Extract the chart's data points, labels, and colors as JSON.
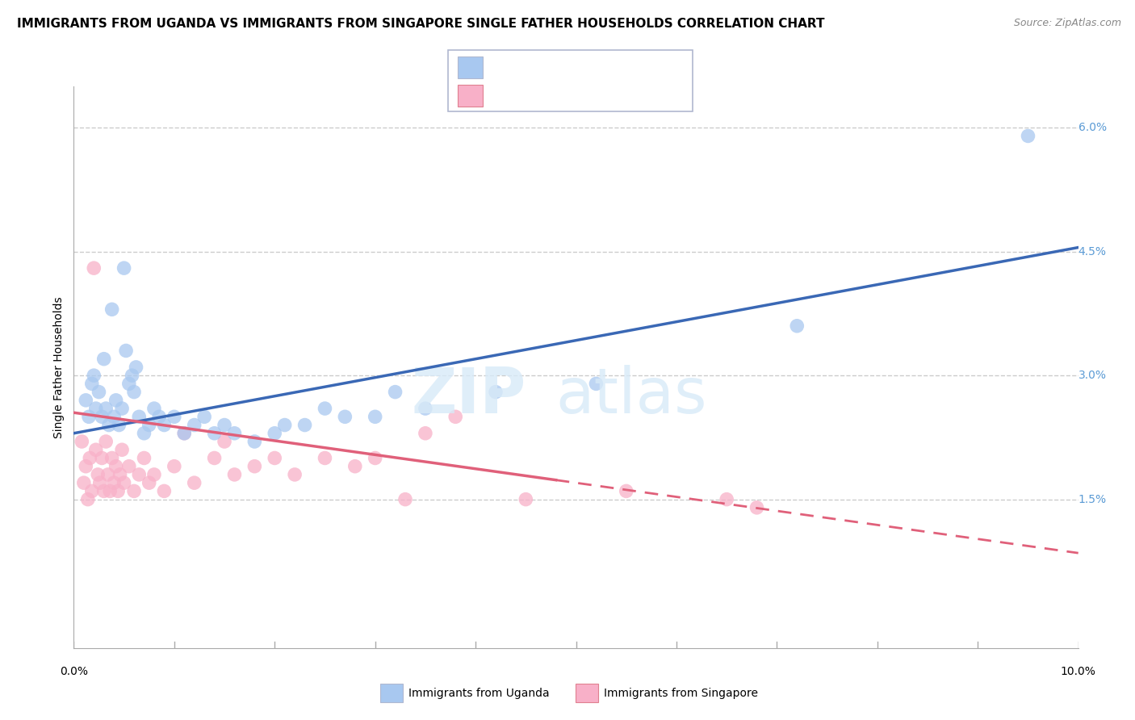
{
  "title": "IMMIGRANTS FROM UGANDA VS IMMIGRANTS FROM SINGAPORE SINGLE FATHER HOUSEHOLDS CORRELATION CHART",
  "source": "Source: ZipAtlas.com",
  "ylabel": "Single Father Households",
  "xlim": [
    0.0,
    10.0
  ],
  "ylim": [
    -0.3,
    6.5
  ],
  "ytick_vals": [
    1.5,
    3.0,
    4.5,
    6.0
  ],
  "ytick_labels": [
    "1.5%",
    "3.0%",
    "4.5%",
    "6.0%"
  ],
  "uganda_color": "#a8c8f0",
  "singapore_color": "#f8b0c8",
  "uganda_line_color": "#3a68b5",
  "singapore_line_color": "#e0607a",
  "uganda_scatter": [
    [
      0.12,
      2.7
    ],
    [
      0.15,
      2.5
    ],
    [
      0.18,
      2.9
    ],
    [
      0.2,
      3.0
    ],
    [
      0.22,
      2.6
    ],
    [
      0.25,
      2.8
    ],
    [
      0.28,
      2.5
    ],
    [
      0.3,
      3.2
    ],
    [
      0.32,
      2.6
    ],
    [
      0.35,
      2.4
    ],
    [
      0.38,
      3.8
    ],
    [
      0.4,
      2.5
    ],
    [
      0.42,
      2.7
    ],
    [
      0.45,
      2.4
    ],
    [
      0.48,
      2.6
    ],
    [
      0.5,
      4.3
    ],
    [
      0.52,
      3.3
    ],
    [
      0.55,
      2.9
    ],
    [
      0.58,
      3.0
    ],
    [
      0.6,
      2.8
    ],
    [
      0.62,
      3.1
    ],
    [
      0.65,
      2.5
    ],
    [
      0.7,
      2.3
    ],
    [
      0.75,
      2.4
    ],
    [
      0.8,
      2.6
    ],
    [
      0.85,
      2.5
    ],
    [
      0.9,
      2.4
    ],
    [
      1.0,
      2.5
    ],
    [
      1.1,
      2.3
    ],
    [
      1.2,
      2.4
    ],
    [
      1.3,
      2.5
    ],
    [
      1.4,
      2.3
    ],
    [
      1.5,
      2.4
    ],
    [
      1.6,
      2.3
    ],
    [
      1.8,
      2.2
    ],
    [
      2.0,
      2.3
    ],
    [
      2.1,
      2.4
    ],
    [
      2.3,
      2.4
    ],
    [
      2.5,
      2.6
    ],
    [
      2.7,
      2.5
    ],
    [
      3.0,
      2.5
    ],
    [
      3.2,
      2.8
    ],
    [
      3.5,
      2.6
    ],
    [
      4.2,
      2.8
    ],
    [
      5.2,
      2.9
    ],
    [
      7.2,
      3.6
    ],
    [
      9.5,
      5.9
    ]
  ],
  "singapore_scatter": [
    [
      0.08,
      2.2
    ],
    [
      0.1,
      1.7
    ],
    [
      0.12,
      1.9
    ],
    [
      0.14,
      1.5
    ],
    [
      0.16,
      2.0
    ],
    [
      0.18,
      1.6
    ],
    [
      0.2,
      4.3
    ],
    [
      0.22,
      2.1
    ],
    [
      0.24,
      1.8
    ],
    [
      0.26,
      1.7
    ],
    [
      0.28,
      2.0
    ],
    [
      0.3,
      1.6
    ],
    [
      0.32,
      2.2
    ],
    [
      0.34,
      1.8
    ],
    [
      0.36,
      1.6
    ],
    [
      0.38,
      2.0
    ],
    [
      0.4,
      1.7
    ],
    [
      0.42,
      1.9
    ],
    [
      0.44,
      1.6
    ],
    [
      0.46,
      1.8
    ],
    [
      0.48,
      2.1
    ],
    [
      0.5,
      1.7
    ],
    [
      0.55,
      1.9
    ],
    [
      0.6,
      1.6
    ],
    [
      0.65,
      1.8
    ],
    [
      0.7,
      2.0
    ],
    [
      0.75,
      1.7
    ],
    [
      0.8,
      1.8
    ],
    [
      0.9,
      1.6
    ],
    [
      1.0,
      1.9
    ],
    [
      1.1,
      2.3
    ],
    [
      1.2,
      1.7
    ],
    [
      1.4,
      2.0
    ],
    [
      1.5,
      2.2
    ],
    [
      1.6,
      1.8
    ],
    [
      1.8,
      1.9
    ],
    [
      2.0,
      2.0
    ],
    [
      2.2,
      1.8
    ],
    [
      2.5,
      2.0
    ],
    [
      2.8,
      1.9
    ],
    [
      3.0,
      2.0
    ],
    [
      3.3,
      1.5
    ],
    [
      3.5,
      2.3
    ],
    [
      3.8,
      2.5
    ],
    [
      4.5,
      1.5
    ],
    [
      5.5,
      1.6
    ],
    [
      6.5,
      1.5
    ],
    [
      6.8,
      1.4
    ]
  ],
  "uganda_line_x": [
    0.0,
    10.0
  ],
  "uganda_line_y": [
    2.3,
    4.55
  ],
  "singapore_line_x0": 0.0,
  "singapore_line_y0": 2.55,
  "singapore_line_x1": 10.0,
  "singapore_line_y1": 0.85,
  "singapore_solid_end": 4.8,
  "watermark_zip": "ZIP",
  "watermark_atlas": "atlas",
  "background_color": "#ffffff",
  "grid_color": "#cccccc",
  "title_fontsize": 11,
  "source_fontsize": 9,
  "ylabel_fontsize": 10,
  "tick_fontsize": 10,
  "legend_fontsize": 11,
  "legend_text_color_uganda": "#4472c4",
  "legend_text_color_singapore": "#e05080",
  "ytick_color": "#5b9bd5"
}
